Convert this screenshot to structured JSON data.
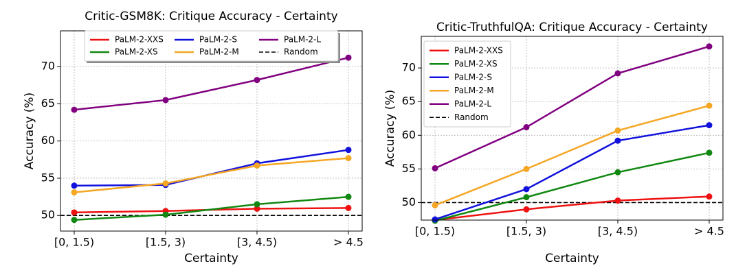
{
  "chart_data": [
    {
      "type": "line",
      "title": "Critic-GSM8K: Critique Accuracy - Certainty",
      "x_label": "Certainty",
      "y_label": "Accuracy (%)",
      "categories": [
        "[0, 1.5)",
        "[1.5, 3)",
        "[3, 4.5)",
        "> 4.5"
      ],
      "ylim": [
        47.9,
        74.8
      ],
      "yticks": [
        50,
        55,
        60,
        65,
        70
      ],
      "grid": true,
      "legend_loc": "upper center",
      "legend_columns": 3,
      "series": [
        {
          "name": "PaLM-2-XXS",
          "color": "#ee1111",
          "values": [
            50.4,
            50.6,
            50.9,
            51.0
          ]
        },
        {
          "name": "PaLM-2-XS",
          "color": "#118811",
          "values": [
            49.4,
            50.1,
            51.5,
            52.5
          ]
        },
        {
          "name": "PaLM-2-S",
          "color": "#1111dd",
          "values": [
            54.0,
            54.1,
            57.0,
            58.8
          ]
        },
        {
          "name": "PaLM-2-M",
          "color": "#f5a623",
          "values": [
            53.1,
            54.3,
            56.7,
            57.7
          ]
        },
        {
          "name": "PaLM-2-L",
          "color": "#800080",
          "values": [
            64.2,
            65.5,
            68.2,
            71.2
          ]
        }
      ],
      "reference_line": {
        "name": "Random",
        "value": 50,
        "color": "#000000"
      }
    },
    {
      "type": "line",
      "title": "Critic-TruthfulQA: Critique Accuracy - Certainty",
      "x_label": "Certainty",
      "y_label": "Accuracy (%)",
      "categories": [
        "[0, 1.5)",
        "[1.5, 3)",
        "[3, 4.5)",
        "> 4.5"
      ],
      "ylim": [
        47.4,
        74.7
      ],
      "yticks": [
        50,
        55,
        60,
        65,
        70
      ],
      "grid": true,
      "legend_loc": "upper left",
      "legend_columns": 1,
      "series": [
        {
          "name": "PaLM-2-XXS",
          "color": "#ee1111",
          "values": [
            47.4,
            49.0,
            50.3,
            50.9
          ]
        },
        {
          "name": "PaLM-2-XS",
          "color": "#118811",
          "values": [
            47.3,
            50.8,
            54.5,
            57.4
          ]
        },
        {
          "name": "PaLM-2-S",
          "color": "#1111dd",
          "values": [
            47.5,
            52.0,
            59.2,
            61.5
          ]
        },
        {
          "name": "PaLM-2-M",
          "color": "#f5a623",
          "values": [
            49.6,
            55.0,
            60.7,
            64.4
          ]
        },
        {
          "name": "PaLM-2-L",
          "color": "#800080",
          "values": [
            55.1,
            61.2,
            69.2,
            73.2
          ]
        }
      ],
      "reference_line": {
        "name": "Random",
        "value": 50,
        "color": "#000000"
      }
    }
  ]
}
